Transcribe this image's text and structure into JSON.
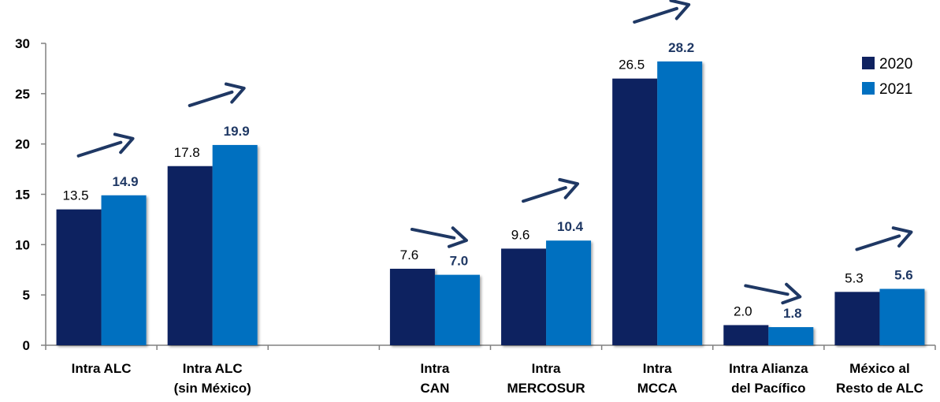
{
  "chart_data": {
    "type": "bar",
    "categories": [
      [
        "Intra ALC"
      ],
      [
        "Intra ALC",
        "(sin México)"
      ],
      [],
      [
        "Intra",
        "CAN"
      ],
      [
        "Intra",
        "MERCOSUR"
      ],
      [
        "Intra",
        "MCCA"
      ],
      [
        "Intra Alianza",
        "del Pacífico"
      ],
      [
        "México al",
        "Resto de ALC"
      ]
    ],
    "series": [
      {
        "name": "2020",
        "color": "#0f2260",
        "values": [
          13.5,
          17.8,
          null,
          7.6,
          9.6,
          26.5,
          2.0,
          5.3
        ],
        "labels": [
          "13.5",
          "17.8",
          "",
          "7.6",
          "9.6",
          "26.5",
          "2.0",
          "5.3"
        ]
      },
      {
        "name": "2021",
        "color": "#0070c0",
        "values": [
          14.9,
          19.9,
          null,
          7.0,
          10.4,
          28.2,
          1.8,
          5.6
        ],
        "labels": [
          "14.9",
          "19.9",
          "",
          "7.0",
          "10.4",
          "28.2",
          "1.8",
          "5.6"
        ]
      }
    ],
    "trend": [
      "up",
      "up",
      null,
      "down",
      "up",
      "up",
      "down",
      "up"
    ],
    "arrow_color": "#1f3864",
    "ylim": [
      0,
      30
    ],
    "yticks": [
      0,
      5,
      10,
      15,
      20,
      25,
      30
    ],
    "legend_position": "top-right",
    "grid": false
  }
}
